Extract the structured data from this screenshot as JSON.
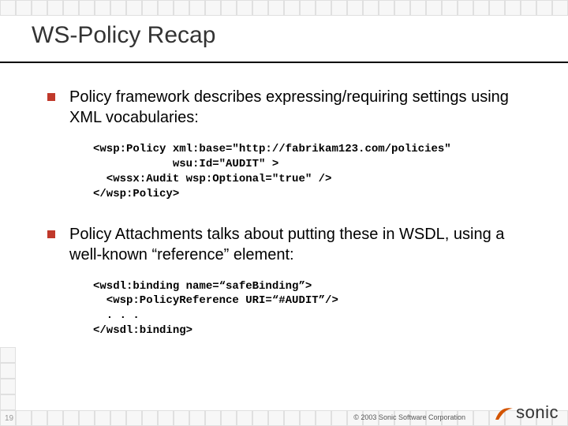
{
  "title": "WS-Policy Recap",
  "bullets": [
    {
      "text": "Policy framework describes expressing/requiring settings using XML vocabularies:",
      "code": "<wsp:Policy xml:base=\"http://fabrikam123.com/policies\"\n            wsu:Id=\"AUDIT\" >\n  <wssx:Audit wsp:Optional=\"true\" />\n</wsp:Policy>"
    },
    {
      "text": "Policy Attachments talks about putting these in WSDL, using a well-known “reference” element:",
      "code": "<wsdl:binding name=“safeBinding”>\n  <wsp:PolicyReference URI=“#AUDIT”/>\n  . . .\n</wsdl:binding>"
    }
  ],
  "page_number": "19",
  "copyright": "© 2003 Sonic Software Corporation",
  "logo_text": "sonic",
  "colors": {
    "bullet": "#c0392b",
    "underline": "#000000",
    "title": "#333333",
    "square_border": "#e0e0e0",
    "square_fill": "#f7f7f7",
    "swoosh": "#d35400"
  },
  "decor": {
    "header_square_count": 36,
    "footer_square_count": 36,
    "vert_square_count": 5
  }
}
